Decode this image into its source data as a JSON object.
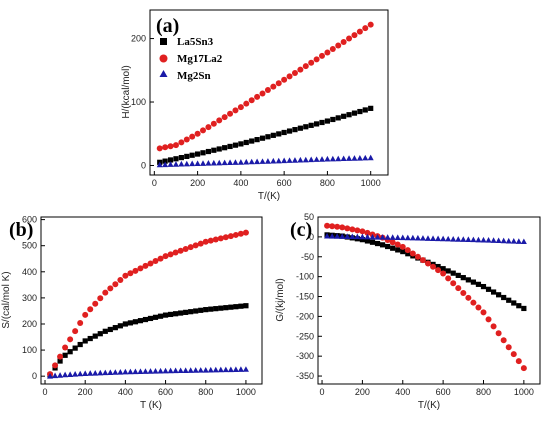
{
  "series_styles": {
    "La5Sn3": {
      "color": "#000000",
      "marker": "square"
    },
    "Mg17La2": {
      "color": "#e02020",
      "marker": "circle"
    },
    "Mg2Sn": {
      "color": "#1a1aa8",
      "marker": "triangle"
    }
  },
  "chart_data": [
    {
      "id": "a",
      "type": "scatter",
      "panel_label": "(a)",
      "xlabel": "T/(K)",
      "ylabel": "H/(kcal/mol)",
      "xlim": [
        -20,
        1080
      ],
      "ylim": [
        -15,
        245
      ],
      "xticks": [
        0,
        200,
        400,
        600,
        800,
        1000
      ],
      "yticks": [
        0,
        100,
        200
      ],
      "legend": {
        "placement": "top-left",
        "entries": [
          "La5Sn3",
          "Mg17La2",
          "Mg2Sn"
        ]
      },
      "x_start": 25,
      "x_end": 1000,
      "x_step": 25,
      "series": [
        {
          "name": "La5Sn3",
          "control_x": [
            25,
            200,
            400,
            600,
            800,
            1000
          ],
          "control_y": [
            5,
            18,
            34,
            52,
            70,
            90
          ]
        },
        {
          "name": "Mg17La2",
          "control_x": [
            25,
            100,
            200,
            400,
            600,
            800,
            1000
          ],
          "control_y": [
            27,
            32,
            50,
            92,
            135,
            178,
            222
          ]
        },
        {
          "name": "Mg2Sn",
          "control_x": [
            25,
            200,
            400,
            600,
            800,
            1000
          ],
          "control_y": [
            1,
            3,
            5,
            7.5,
            10,
            12
          ]
        }
      ]
    },
    {
      "id": "b",
      "type": "scatter",
      "panel_label": "(b)",
      "xlabel": "T (K)",
      "ylabel": "S/(cal/mol K)",
      "xlim": [
        -20,
        1080
      ],
      "ylim": [
        -30,
        610
      ],
      "xticks": [
        0,
        200,
        400,
        600,
        800,
        1000
      ],
      "yticks": [
        0,
        100,
        200,
        300,
        400,
        500,
        600
      ],
      "x_start": 25,
      "x_end": 1000,
      "x_step": 25,
      "series": [
        {
          "name": "La5Sn3",
          "control_x": [
            25,
            75,
            100,
            200,
            300,
            400,
            600,
            800,
            1000
          ],
          "control_y": [
            5,
            58,
            80,
            135,
            172,
            200,
            234,
            255,
            270
          ]
        },
        {
          "name": "Mg17La2",
          "control_x": [
            25,
            75,
            100,
            200,
            300,
            400,
            600,
            800,
            1000
          ],
          "control_y": [
            8,
            75,
            110,
            235,
            320,
            385,
            460,
            515,
            550
          ]
        },
        {
          "name": "Mg2Sn",
          "control_x": [
            25,
            100,
            200,
            400,
            600,
            800,
            1000
          ],
          "control_y": [
            0,
            5,
            10,
            16,
            20,
            23,
            26
          ]
        }
      ]
    },
    {
      "id": "c",
      "type": "scatter",
      "panel_label": "(c)",
      "xlabel": "T/(K)",
      "ylabel": "G/(kj/mol)",
      "xlim": [
        -20,
        1080
      ],
      "ylim": [
        -370,
        50
      ],
      "xticks": [
        0,
        200,
        400,
        600,
        800,
        1000
      ],
      "yticks": [
        50,
        0,
        -50,
        -100,
        -150,
        -200,
        -250,
        -300,
        -350
      ],
      "x_start": 25,
      "x_end": 1000,
      "x_step": 25,
      "series": [
        {
          "name": "La5Sn3",
          "control_x": [
            25,
            100,
            200,
            300,
            400,
            600,
            800,
            1000
          ],
          "control_y": [
            5,
            2,
            -7,
            -20,
            -37,
            -80,
            -125,
            -180
          ]
        },
        {
          "name": "Mg17La2",
          "control_x": [
            25,
            100,
            200,
            300,
            400,
            600,
            800,
            1000
          ],
          "control_y": [
            28,
            24,
            14,
            -2,
            -25,
            -92,
            -190,
            -330
          ]
        },
        {
          "name": "Mg2Sn",
          "control_x": [
            25,
            200,
            400,
            600,
            800,
            1000
          ],
          "control_y": [
            2,
            0,
            -2,
            -5,
            -8,
            -12
          ]
        }
      ]
    }
  ]
}
